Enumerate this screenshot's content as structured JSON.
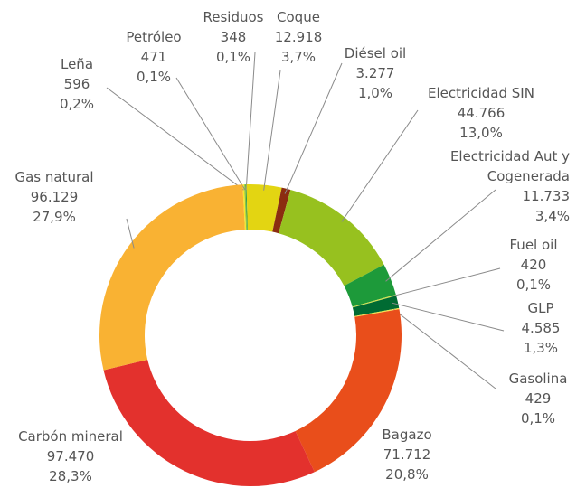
{
  "chart_data": {
    "type": "donut",
    "categories": [
      "Leña",
      "Petróleo",
      "Residuos",
      "Coque",
      "Diésel oil",
      "Electricidad SIN",
      "Electricidad Aut y Cogenerada",
      "Fuel oil",
      "GLP",
      "Gasolina",
      "Bagazo",
      "Carbón mineral",
      "Gas natural"
    ],
    "values": [
      596,
      471,
      348,
      12918,
      3277,
      44766,
      11733,
      420,
      4585,
      429,
      71712,
      97470,
      96129
    ],
    "value_labels": [
      "596",
      "471",
      "348",
      "12.918",
      "3.277",
      "44.766",
      "11.733",
      "420",
      "4.585",
      "429",
      "71.712",
      "97.470",
      "96.129"
    ],
    "percent_labels": [
      "0,2%",
      "0,1%",
      "0,1%",
      "3,7%",
      "1,0%",
      "13,0%",
      "3,4%",
      "0,1%",
      "1,3%",
      "0,1%",
      "20,8%",
      "28,3%",
      "27,9%"
    ],
    "colors": [
      "#f7e72a",
      "#8cc63f",
      "#2e9b45",
      "#e3d512",
      "#8b2d10",
      "#97c11f",
      "#1d9a3a",
      "#d6e34a",
      "#006b33",
      "#f5e64a",
      "#e94e1b",
      "#e3312d",
      "#f9b233"
    ]
  }
}
